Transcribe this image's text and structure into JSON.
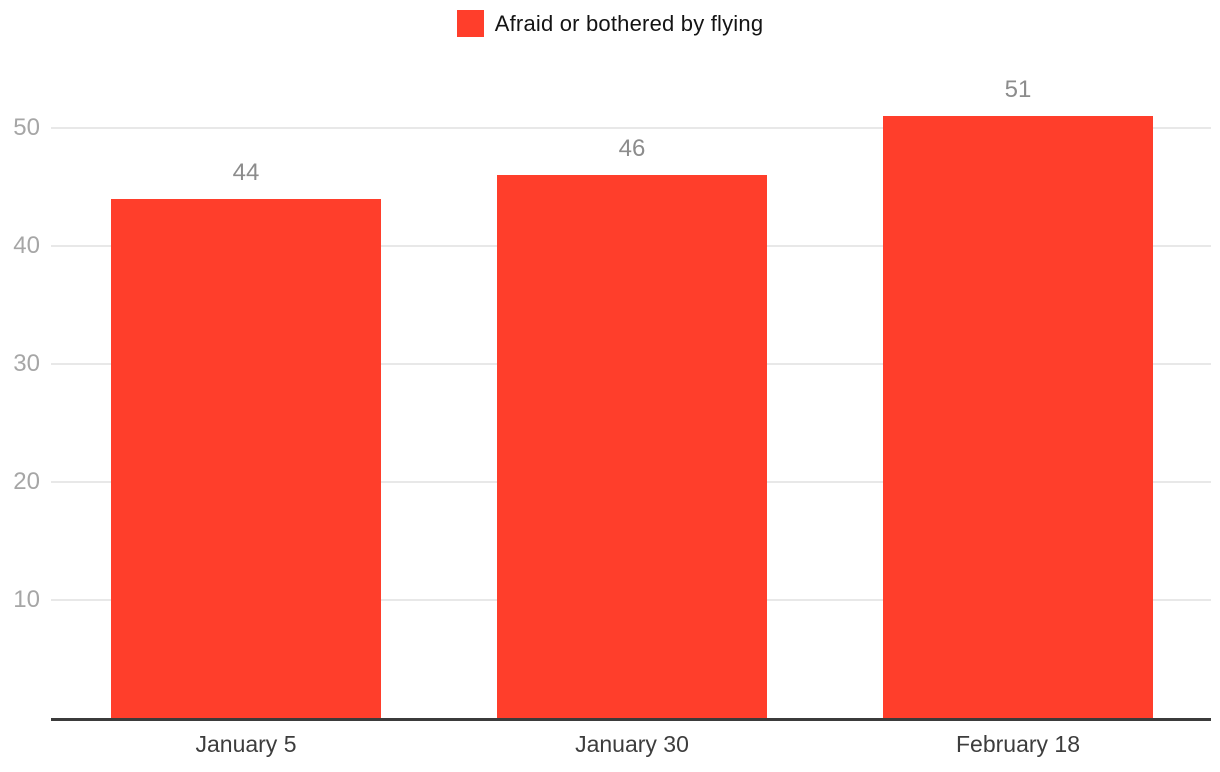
{
  "page": {
    "background_color": "#ffffff"
  },
  "chart_data": {
    "type": "bar",
    "title": "",
    "categories": [
      "January 5",
      "January 30",
      "February 18"
    ],
    "series": [
      {
        "name": "Afraid or bothered by flying",
        "values": [
          44,
          46,
          51
        ]
      }
    ],
    "value_labels": [
      "44",
      "46",
      "51"
    ],
    "xlabel": "",
    "ylabel": "",
    "ylim": [
      0,
      55
    ],
    "yticks": [
      10,
      20,
      30,
      40,
      50
    ],
    "grid": "horizontal",
    "legend_position": "top-center",
    "colors": {
      "bar": "#ff3e2b",
      "gridline": "#e8e8e8",
      "axis_line": "#3b3b3b",
      "y_tick_label": "#a6a6a6",
      "value_label": "#8c8c8c",
      "x_tick_label": "#3d3d3d",
      "legend_text": "#141414"
    }
  }
}
